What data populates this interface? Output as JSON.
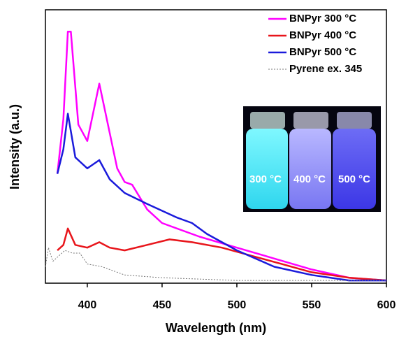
{
  "chart_data": {
    "type": "line",
    "xlabel": "Wavelength (nm)",
    "ylabel": "Intensity (a.u.)",
    "xlim": [
      372,
      600
    ],
    "xticks": [
      400,
      450,
      500,
      550,
      600
    ],
    "ylim": [
      0,
      1
    ],
    "legend": "top-right",
    "series": [
      {
        "name": "BNPyr 300 °C",
        "color": "#ff00ff",
        "dashed": false,
        "x": [
          380,
          384,
          387,
          389,
          394,
          400,
          408,
          420,
          425,
          430,
          440,
          450,
          475,
          500,
          525,
          550,
          575,
          600
        ],
        "values": [
          0.4,
          0.6,
          0.92,
          0.92,
          0.58,
          0.52,
          0.73,
          0.42,
          0.37,
          0.36,
          0.27,
          0.22,
          0.17,
          0.13,
          0.09,
          0.05,
          0.02,
          0.01
        ]
      },
      {
        "name": "BNPyr 400 °C",
        "color": "#e8151b",
        "dashed": false,
        "x": [
          380,
          384,
          387,
          392,
          400,
          408,
          415,
          425,
          440,
          455,
          470,
          490,
          510,
          530,
          550,
          575,
          600
        ],
        "values": [
          0.12,
          0.14,
          0.2,
          0.14,
          0.13,
          0.15,
          0.13,
          0.12,
          0.14,
          0.16,
          0.15,
          0.13,
          0.1,
          0.07,
          0.04,
          0.02,
          0.01
        ]
      },
      {
        "name": "BNPyr 500 °C",
        "color": "#1a1adb",
        "dashed": false,
        "x": [
          380,
          384,
          387,
          392,
          396,
          400,
          408,
          415,
          425,
          440,
          460,
          470,
          480,
          500,
          525,
          550,
          575,
          600
        ],
        "values": [
          0.4,
          0.49,
          0.62,
          0.46,
          0.44,
          0.42,
          0.45,
          0.38,
          0.33,
          0.29,
          0.24,
          0.22,
          0.18,
          0.12,
          0.06,
          0.03,
          0.01,
          0.01
        ]
      },
      {
        "name": "Pyrene ex. 345",
        "color": "#777777",
        "dashed": true,
        "x": [
          372,
          374,
          377,
          381,
          385,
          390,
          395,
          400,
          410,
          425,
          450,
          500,
          600
        ],
        "values": [
          0.06,
          0.13,
          0.08,
          0.1,
          0.12,
          0.11,
          0.11,
          0.07,
          0.06,
          0.03,
          0.02,
          0.01,
          0.01
        ]
      }
    ],
    "inset_labels": [
      "300 °C",
      "400 °C",
      "500 °C"
    ]
  }
}
